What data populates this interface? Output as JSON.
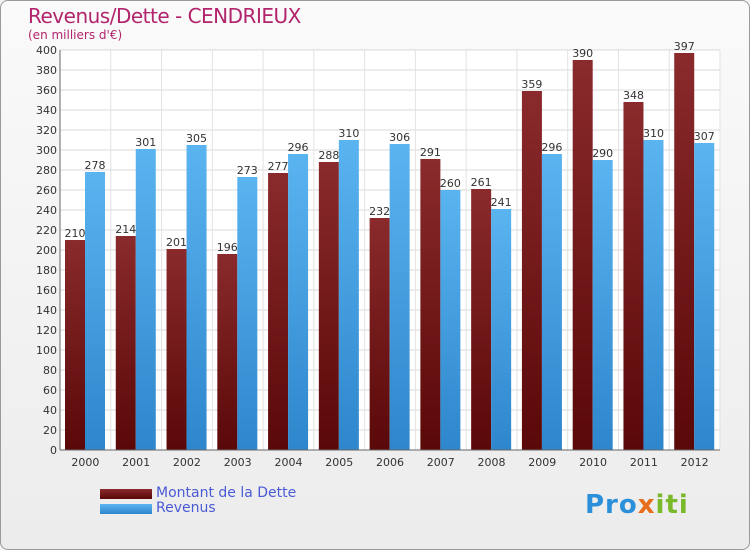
{
  "title": "Revenus/Dette - CENDRIEUX",
  "subtitle": "(en milliers d'€)",
  "logo": {
    "p1": "Pro",
    "p2": "x",
    "p3": "iti"
  },
  "chart_data": {
    "type": "bar",
    "title": "Revenus/Dette - CENDRIEUX",
    "ylabel": "(en milliers d'€)",
    "xlabel": "",
    "ylim": [
      0,
      400
    ],
    "ytick_step": 20,
    "grid": true,
    "categories": [
      "2000",
      "2001",
      "2002",
      "2003",
      "2004",
      "2005",
      "2006",
      "2007",
      "2008",
      "2009",
      "2010",
      "2011",
      "2012"
    ],
    "series": [
      {
        "name": "Montant de la Dette",
        "color": "#7a1a1c",
        "values": [
          210,
          214,
          201,
          196,
          277,
          288,
          232,
          291,
          261,
          359,
          390,
          348,
          397
        ]
      },
      {
        "name": "Revenus",
        "color": "#3aa0e6",
        "values": [
          278,
          301,
          305,
          273,
          296,
          310,
          306,
          260,
          241,
          296,
          290,
          310,
          307
        ]
      }
    ],
    "legend_position": "bottom-left"
  }
}
